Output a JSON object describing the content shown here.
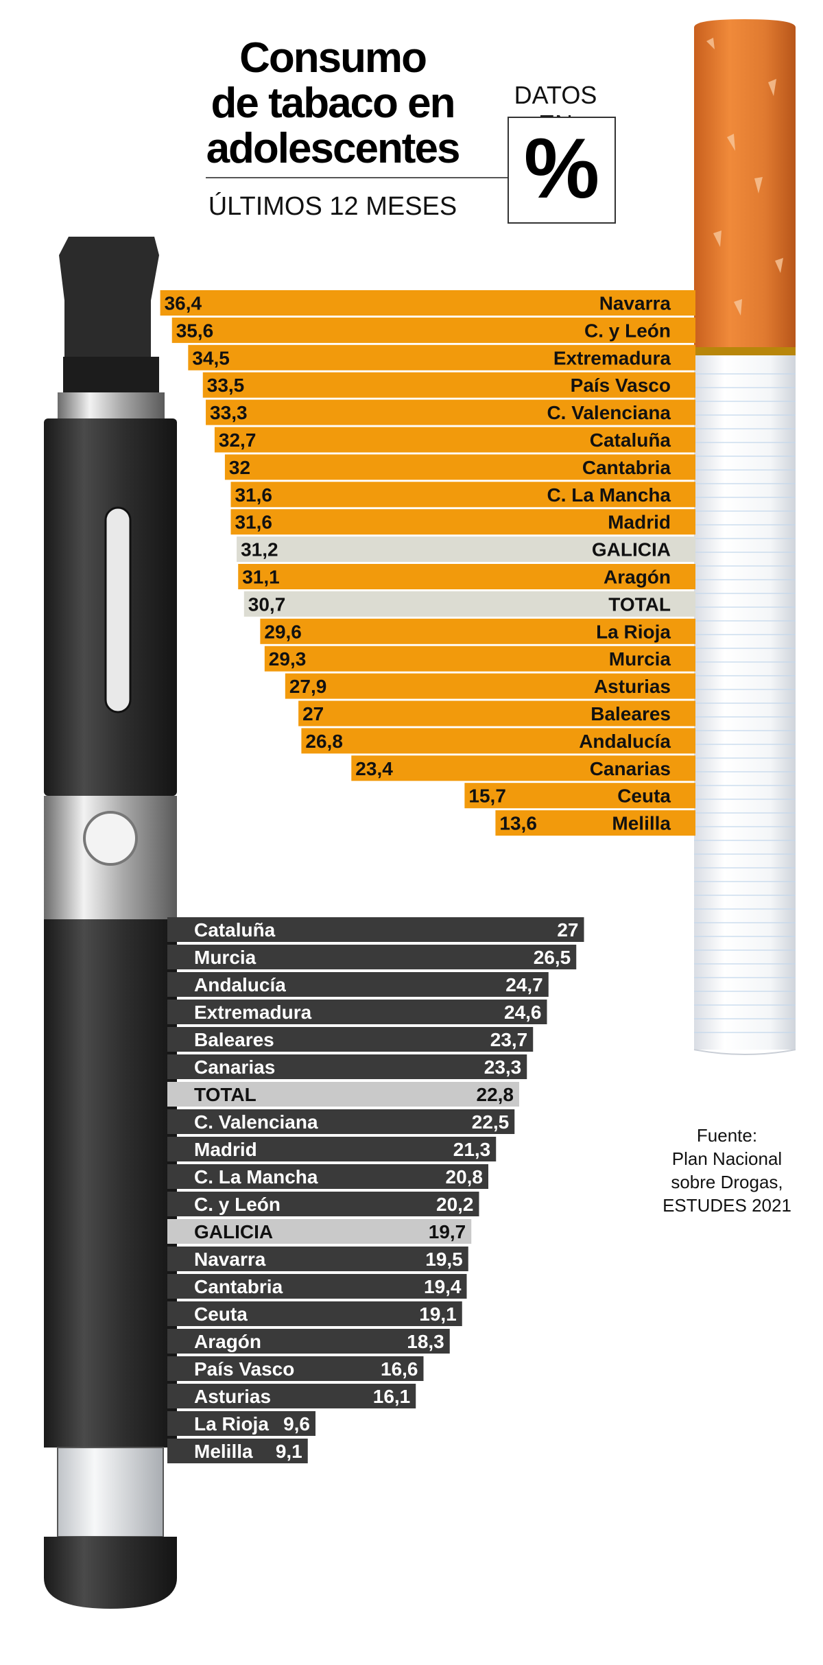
{
  "header": {
    "title_lines": [
      "Consumo",
      "de tabaco en",
      "adolescentes"
    ],
    "subtitle": "ÚLTIMOS 12 MESES",
    "datos_label": "DATOS EN",
    "percent_symbol": "%"
  },
  "source": {
    "lines": [
      "Fuente:",
      "Plan Nacional",
      "sobre Drogas,",
      "ESTUDES 2021"
    ]
  },
  "colors": {
    "orange": "#f29a0c",
    "dark": "#3a3a3a",
    "highlight_light": "#dcdcd2",
    "highlight_grey": "#c9c9c9"
  },
  "chart_data": [
    {
      "type": "bar",
      "series": [
        {
          "values": [
            36.4,
            35.6,
            34.5,
            33.5,
            33.3,
            32.7,
            32,
            31.6,
            31.6,
            31.2,
            31.1,
            30.7,
            29.6,
            29.3,
            27.9,
            27,
            26.8,
            23.4,
            15.7,
            13.6
          ]
        }
      ],
      "categories": [
        "Navarra",
        "C. y León",
        "Extremadura",
        "País Vasco",
        "C. Valenciana",
        "Cataluña",
        "Cantabria",
        "C. La Mancha",
        "Madrid",
        "GALICIA",
        "Aragón",
        "TOTAL",
        "La Rioja",
        "Murcia",
        "Asturias",
        "Baleares",
        "Andalucía",
        "Canarias",
        "Ceuta",
        "Melilla"
      ],
      "value_labels": [
        "36,4",
        "35,6",
        "34,5",
        "33,5",
        "33,3",
        "32,7",
        "32",
        "31,6",
        "31,6",
        "31,2",
        "31,1",
        "30,7",
        "29,6",
        "29,3",
        "27,9",
        "27",
        "26,8",
        "23,4",
        "15,7",
        "13,6"
      ],
      "highlighted": [
        "GALICIA",
        "TOTAL"
      ],
      "orientation": "horizontal-right-aligned",
      "color": "#f29a0c"
    },
    {
      "type": "bar",
      "series": [
        {
          "values": [
            27,
            26.5,
            24.7,
            24.6,
            23.7,
            23.3,
            22.8,
            22.5,
            21.3,
            20.8,
            20.2,
            19.7,
            19.5,
            19.4,
            19.1,
            18.3,
            16.6,
            16.1,
            9.6,
            9.1
          ]
        }
      ],
      "categories": [
        "Cataluña",
        "Murcia",
        "Andalucía",
        "Extremadura",
        "Baleares",
        "Canarias",
        "TOTAL",
        "C. Valenciana",
        "Madrid",
        "C. La Mancha",
        "C. y León",
        "GALICIA",
        "Navarra",
        "Cantabria",
        "Ceuta",
        "Aragón",
        "País Vasco",
        "Asturias",
        "La Rioja",
        "Melilla"
      ],
      "value_labels": [
        "27",
        "26,5",
        "24,7",
        "24,6",
        "23,7",
        "23,3",
        "22,8",
        "22,5",
        "21,3",
        "20,8",
        "20,2",
        "19,7",
        "19,5",
        "19,4",
        "19,1",
        "18,3",
        "16,6",
        "16,1",
        "9,6",
        "9,1"
      ],
      "highlighted": [
        "TOTAL",
        "GALICIA"
      ],
      "orientation": "horizontal-left-aligned",
      "color": "#3a3a3a"
    }
  ]
}
